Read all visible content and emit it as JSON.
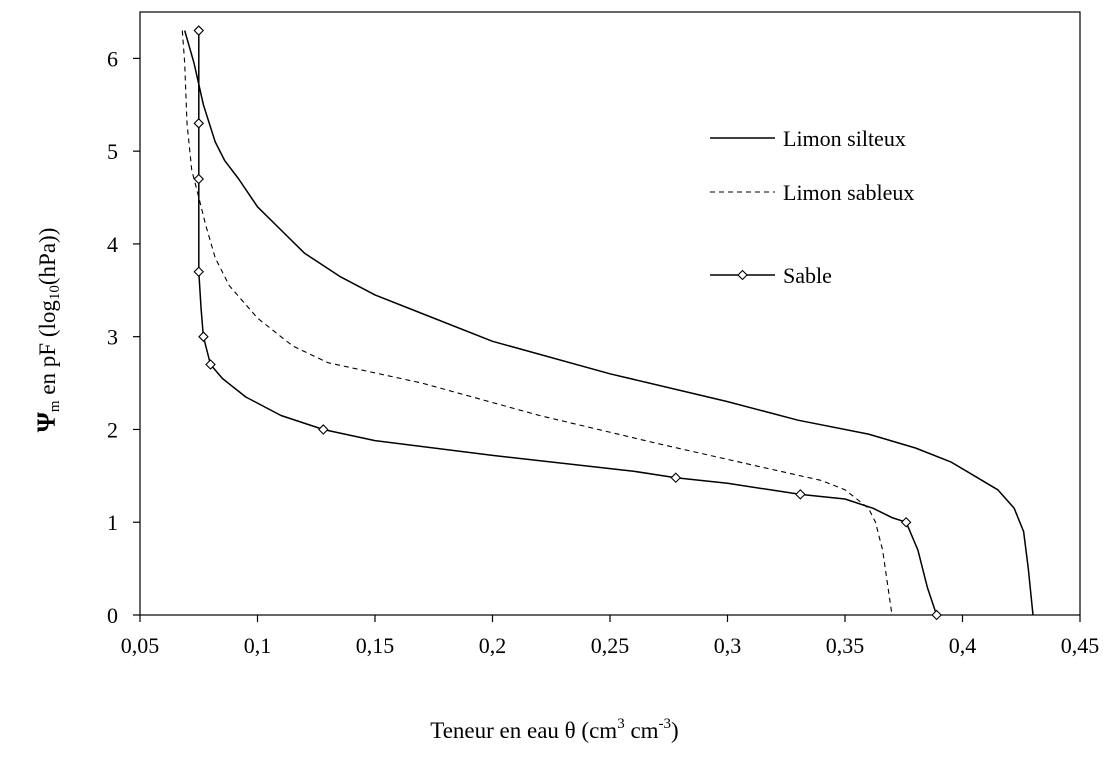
{
  "chart_data": {
    "type": "line",
    "xlabel": {
      "prefix": "Teneur en eau θ (cm",
      "sup1": "3",
      "middle": " cm",
      "sup2": "-3",
      "suffix": ")"
    },
    "ylabel": {
      "symbol": "Ψ",
      "sub1": "m",
      "middle": " en pF (log",
      "sub2": "10",
      "suffix": "(hPa))"
    },
    "xlim": [
      0.05,
      0.45
    ],
    "ylim": [
      0,
      6.5
    ],
    "xticks": [
      0.05,
      0.1,
      0.15,
      0.2,
      0.25,
      0.3,
      0.35,
      0.4,
      0.45
    ],
    "xtick_labels": [
      "0,05",
      "0,1",
      "0,15",
      "0,2",
      "0,25",
      "0,3",
      "0,35",
      "0,4",
      "0,45"
    ],
    "yticks": [
      0,
      1,
      2,
      3,
      4,
      5,
      6
    ],
    "ytick_labels": [
      "0",
      "1",
      "2",
      "3",
      "4",
      "5",
      "6"
    ],
    "grid": false,
    "legend_position": "top-right",
    "series": [
      {
        "name": "Limon silteux",
        "style": "solid",
        "marker": "none",
        "x": [
          0.069,
          0.073,
          0.077,
          0.082,
          0.086,
          0.092,
          0.1,
          0.11,
          0.12,
          0.135,
          0.15,
          0.17,
          0.2,
          0.25,
          0.3,
          0.33,
          0.36,
          0.38,
          0.395,
          0.405,
          0.415,
          0.422,
          0.426,
          0.428,
          0.43
        ],
        "y": [
          6.3,
          5.95,
          5.5,
          5.1,
          4.9,
          4.7,
          4.4,
          4.15,
          3.9,
          3.65,
          3.45,
          3.25,
          2.95,
          2.6,
          2.3,
          2.1,
          1.95,
          1.8,
          1.65,
          1.5,
          1.35,
          1.15,
          0.9,
          0.5,
          0.0
        ]
      },
      {
        "name": "Limon sableux",
        "style": "dashed",
        "marker": "none",
        "x": [
          0.068,
          0.069,
          0.07,
          0.072,
          0.075,
          0.078,
          0.082,
          0.088,
          0.1,
          0.115,
          0.13,
          0.17,
          0.22,
          0.27,
          0.31,
          0.34,
          0.35,
          0.355,
          0.36,
          0.363,
          0.366,
          0.368,
          0.37
        ],
        "y": [
          6.3,
          5.95,
          5.3,
          4.8,
          4.5,
          4.2,
          3.85,
          3.55,
          3.2,
          2.9,
          2.72,
          2.5,
          2.15,
          1.85,
          1.62,
          1.45,
          1.35,
          1.25,
          1.15,
          1.0,
          0.7,
          0.35,
          0.0
        ]
      },
      {
        "name": "Sable",
        "style": "solid",
        "marker": "diamond",
        "x": [
          0.075,
          0.075,
          0.075,
          0.075,
          0.075,
          0.075,
          0.076,
          0.077,
          0.08,
          0.085,
          0.095,
          0.11,
          0.128,
          0.15,
          0.2,
          0.26,
          0.278,
          0.3,
          0.331,
          0.35,
          0.362,
          0.37,
          0.376,
          0.381,
          0.385,
          0.389
        ],
        "y": [
          6.3,
          5.8,
          5.3,
          4.7,
          4.2,
          3.7,
          3.3,
          3.0,
          2.7,
          2.55,
          2.35,
          2.15,
          2.0,
          1.88,
          1.72,
          1.55,
          1.48,
          1.42,
          1.3,
          1.25,
          1.15,
          1.05,
          1.0,
          0.7,
          0.3,
          0.0
        ],
        "marker_x": [
          0.075,
          0.075,
          0.075,
          0.075,
          0.077,
          0.08,
          0.128,
          0.278,
          0.331,
          0.376,
          0.389
        ],
        "marker_y": [
          6.3,
          5.3,
          4.7,
          3.7,
          3.0,
          2.7,
          2.0,
          1.48,
          1.3,
          1.0,
          0.0
        ]
      }
    ]
  }
}
